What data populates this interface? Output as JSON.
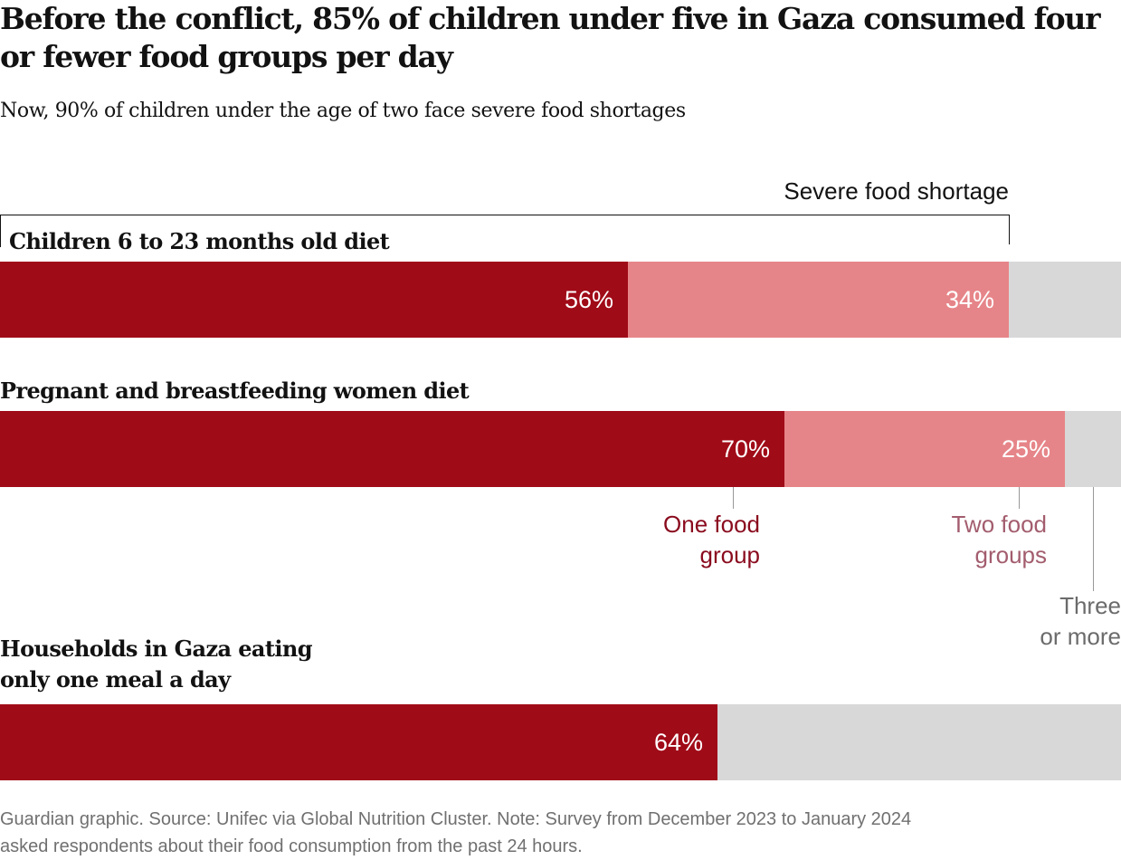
{
  "title": "Before the conflict, 85% of children under five in Gaza consumed four or fewer food groups per day",
  "subtitle": "Now, 90% of children under the age of two face severe food shortages",
  "footer_line1": "Guardian graphic. Source: Unifec via Global Nutrition Cluster. Note: Survey from December 2023 to January 2024",
  "footer_line2": "asked respondents about their food consumption from the past 24 hours.",
  "colors": {
    "one_food_group": "#a00b18",
    "two_food_groups": "#e68589",
    "remainder": "#d8d8d8",
    "one_label": "#8a0b1e",
    "two_label": "#a35d6e",
    "three_label": "#6b6b6b"
  },
  "chart_data": {
    "type": "bar",
    "orientation": "horizontal-stacked",
    "title": "Before the conflict, 85% of children under five in Gaza consumed four or fewer food groups per day",
    "subtitle": "Now, 90% of children under the age of two face severe food shortages",
    "xlim": [
      0,
      100
    ],
    "grid": false,
    "bracket_annotation": {
      "label": "Severe food shortage",
      "applies_to": "Children 6 to 23 months old diet",
      "span": [
        0,
        90
      ]
    },
    "categories": [
      "Children 6 to 23 months old diet",
      "Pregnant and breastfeeding women diet",
      "Households in Gaza eating only one meal a day"
    ],
    "series": [
      {
        "name": "One food group",
        "values": [
          56,
          70,
          64
        ],
        "labels": [
          "56%",
          "70%",
          "64%"
        ]
      },
      {
        "name": "Two food groups",
        "values": [
          34,
          25,
          null
        ],
        "labels": [
          "34%",
          "25%",
          ""
        ]
      },
      {
        "name": "Three or more",
        "values": [
          10,
          5,
          null
        ],
        "labels": [
          "",
          "",
          ""
        ]
      }
    ],
    "remainder_row3": 36,
    "annotations": [
      {
        "text_line1": "One food",
        "text_line2": "group",
        "series": "One food group"
      },
      {
        "text_line1": "Two food",
        "text_line2": "groups",
        "series": "Two food groups"
      },
      {
        "text_line1": "Three",
        "text_line2": "or more",
        "series": "Three or more"
      }
    ]
  }
}
